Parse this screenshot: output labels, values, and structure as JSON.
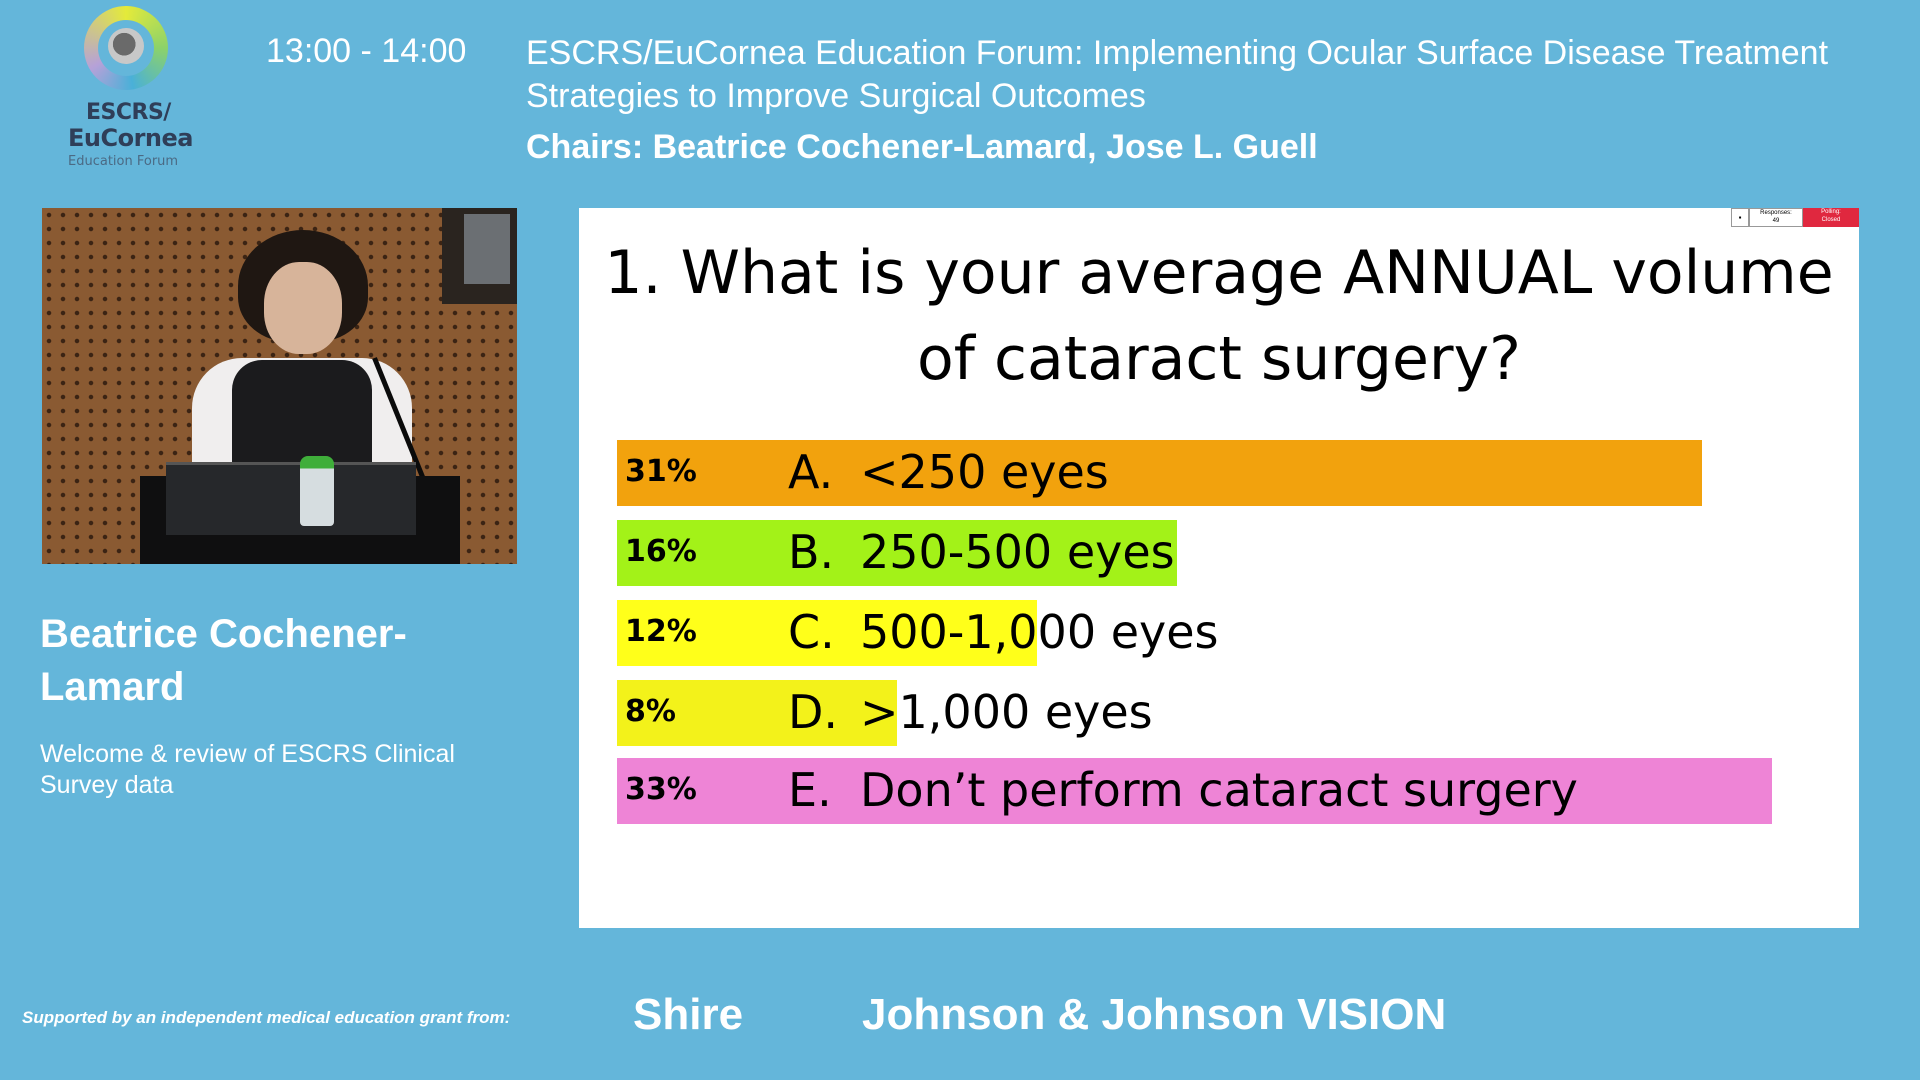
{
  "header": {
    "logo_line1": "ESCRS/",
    "logo_line2": "EuCornea",
    "logo_line3": "Education Forum",
    "time": "13:00 - 14:00",
    "title": "ESCRS/EuCornea Education Forum: Implementing Ocular Surface Disease Treatment Strategies to Improve Surgical Outcomes",
    "chairs": "Chairs: Beatrice Cochener-Lamard, Jose L. Guell"
  },
  "speaker": {
    "name": "Beatrice Cochener-Lamard",
    "talk": "Welcome & review of ESCRS Clinical Survey data"
  },
  "slide": {
    "question": "1. What is your average ANNUAL volume of cataract surgery?",
    "poll": {
      "responses_label": "Responses:",
      "responses_count": "49",
      "status_label": "Polling:",
      "status_value": "Closed"
    },
    "options": [
      {
        "pct": "31%",
        "letter": "A.",
        "text": "<250 eyes",
        "value": 31,
        "color": "#f2a20d"
      },
      {
        "pct": "16%",
        "letter": "B.",
        "text": "250-500 eyes",
        "value": 16,
        "color": "#a3f218"
      },
      {
        "pct": "12%",
        "letter": "C.",
        "text": "500-1,000 eyes",
        "value": 12,
        "color": "#ffff1a"
      },
      {
        "pct": "8%",
        "letter": "D.",
        "text": ">1,000 eyes",
        "value": 8,
        "color": "#f3f21a"
      },
      {
        "pct": "33%",
        "letter": "E.",
        "text": "Don’t perform cataract surgery",
        "value": 33,
        "color": "#ee84d6"
      }
    ]
  },
  "footer": {
    "support_text": "Supported by an independent medical education grant from:",
    "sponsor1": "Shire",
    "sponsor2": "Johnson & Johnson VISION"
  }
}
